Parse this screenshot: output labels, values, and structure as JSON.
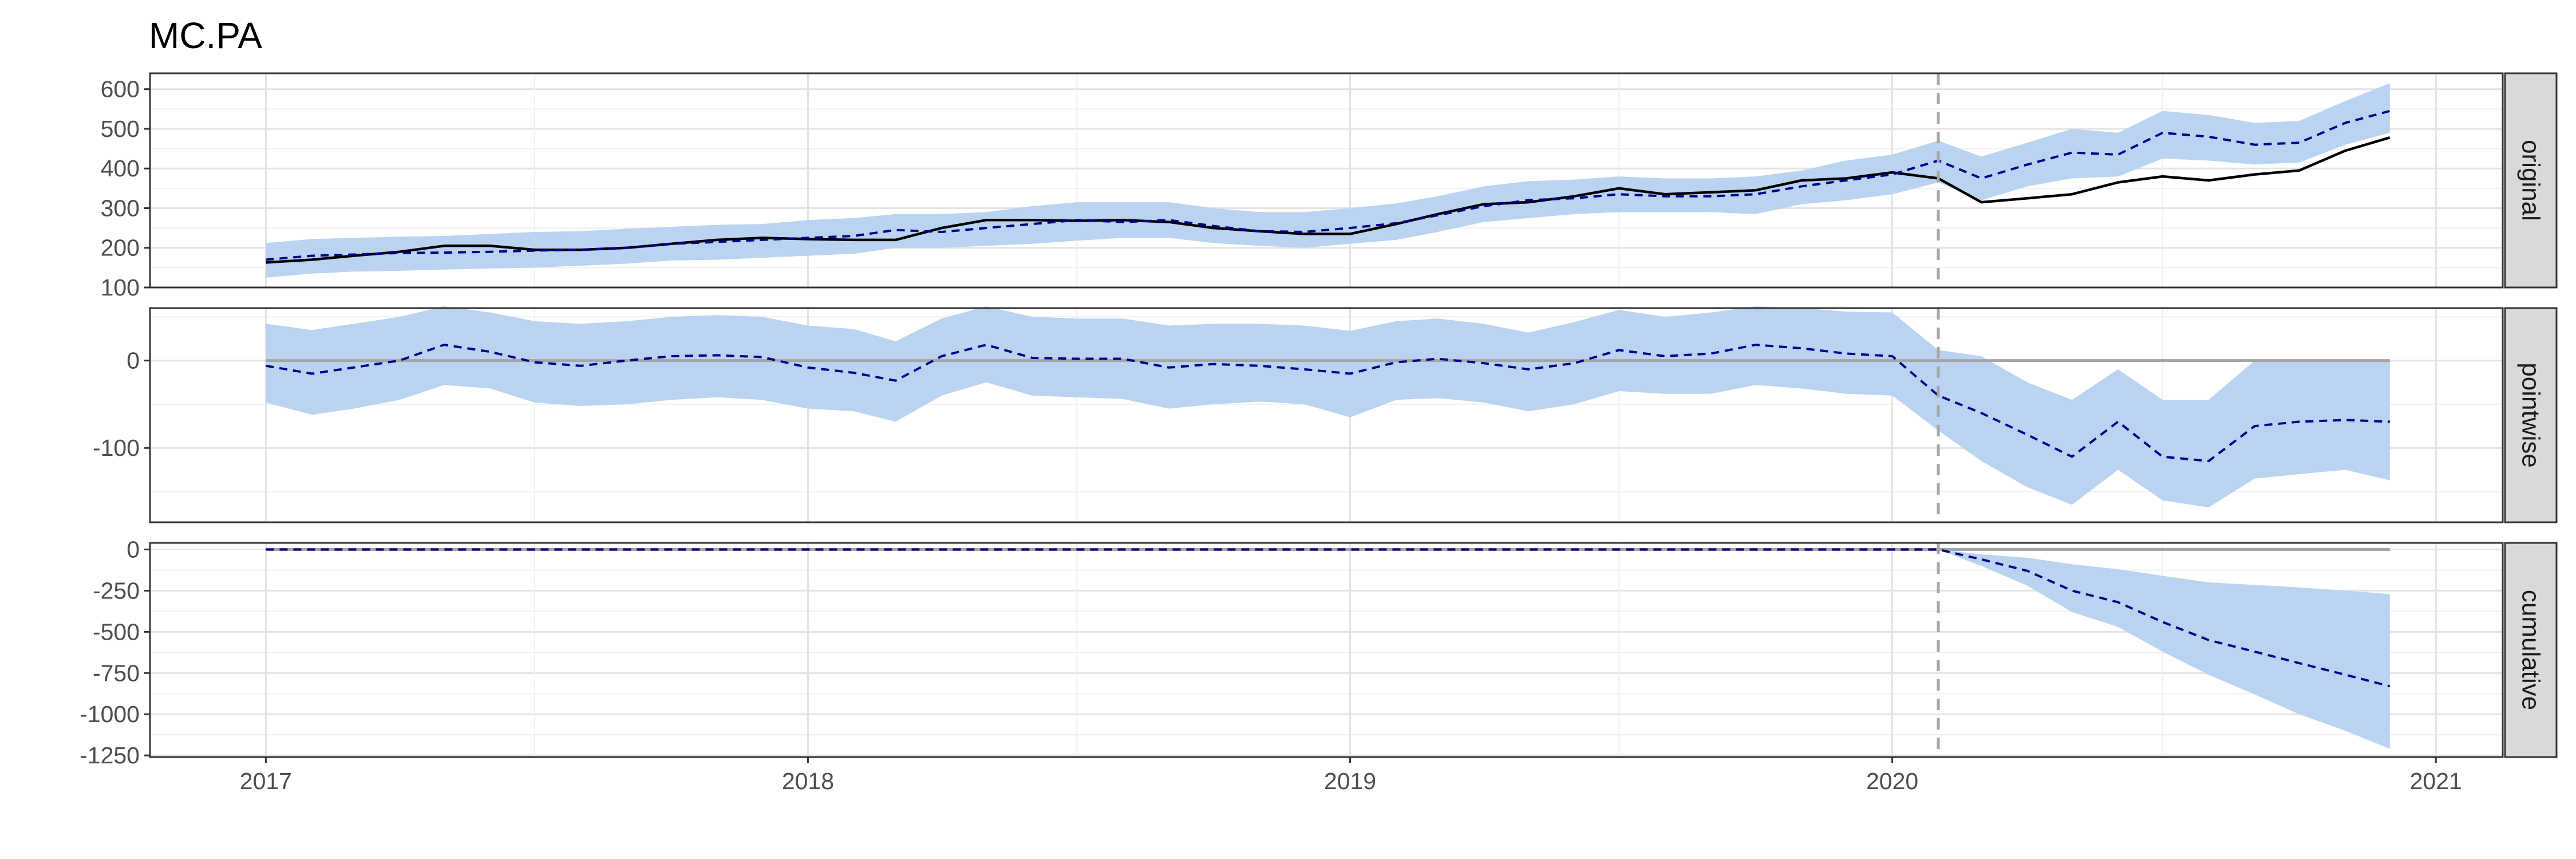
{
  "chart_data": {
    "type": "line",
    "title": "MC.PA",
    "x_axis": {
      "ticks": [
        "2017",
        "2018",
        "2019",
        "2020",
        "2021"
      ],
      "range": [
        "2016-10-15",
        "2021-02-15"
      ]
    },
    "intervention_date": "2020-02-01",
    "grid": true,
    "colors": {
      "band": "#b9d3f0",
      "predicted": "#00008b",
      "actual": "#000000",
      "zero_line": "#a6a6a6",
      "intervention": "#a6a6a6",
      "strip_fill": "#d9d9d9"
    },
    "x": [
      "2017-01-01",
      "2017-02-01",
      "2017-03-01",
      "2017-04-01",
      "2017-05-01",
      "2017-06-01",
      "2017-07-01",
      "2017-08-01",
      "2017-09-01",
      "2017-10-01",
      "2017-11-01",
      "2017-12-01",
      "2018-01-01",
      "2018-02-01",
      "2018-03-01",
      "2018-04-01",
      "2018-05-01",
      "2018-06-01",
      "2018-07-01",
      "2018-08-01",
      "2018-09-01",
      "2018-10-01",
      "2018-11-01",
      "2018-12-01",
      "2019-01-01",
      "2019-02-01",
      "2019-03-01",
      "2019-04-01",
      "2019-05-01",
      "2019-06-01",
      "2019-07-01",
      "2019-08-01",
      "2019-09-01",
      "2019-10-01",
      "2019-11-01",
      "2019-12-01",
      "2020-01-01",
      "2020-02-01",
      "2020-03-01",
      "2020-04-01",
      "2020-05-01",
      "2020-06-01",
      "2020-07-01",
      "2020-08-01",
      "2020-09-01",
      "2020-10-01",
      "2020-11-01",
      "2020-12-01"
    ],
    "panels": [
      {
        "label": "original",
        "ylim": [
          100,
          640
        ],
        "yticks": [
          100,
          200,
          300,
          400,
          500,
          600
        ],
        "zero_line": false,
        "series": [
          {
            "role": "actual",
            "values": [
              163,
              170,
              180,
              190,
              205,
              205,
              195,
              195,
              200,
              210,
              220,
              225,
              222,
              220,
              220,
              250,
              270,
              270,
              268,
              270,
              265,
              250,
              242,
              235,
              235,
              260,
              285,
              310,
              315,
              330,
              350,
              335,
              340,
              345,
              370,
              375,
              390,
              375,
              315,
              325,
              335,
              365,
              380,
              370,
              385,
              395,
              445,
              478
            ]
          },
          {
            "role": "predicted",
            "values": [
              170,
              180,
              183,
              187,
              188,
              190,
              193,
              195,
              200,
              210,
              215,
              220,
              225,
              230,
              245,
              240,
              250,
              260,
              270,
              265,
              270,
              255,
              242,
              240,
              250,
              262,
              282,
              305,
              320,
              325,
              335,
              330,
              330,
              335,
              355,
              370,
              385,
              420,
              375,
              410,
              440,
              435,
              490,
              480,
              460,
              465,
              515,
              545
            ]
          },
          {
            "role": "band_lower",
            "values": [
              125,
              135,
              140,
              142,
              145,
              148,
              150,
              155,
              160,
              168,
              170,
              175,
              180,
              185,
              200,
              200,
              205,
              210,
              218,
              225,
              225,
              212,
              205,
              200,
              210,
              220,
              240,
              265,
              275,
              285,
              290,
              290,
              290,
              285,
              310,
              320,
              335,
              365,
              320,
              355,
              375,
              380,
              425,
              420,
              410,
              415,
              460,
              490
            ]
          },
          {
            "role": "band_upper",
            "values": [
              212,
              222,
              225,
              228,
              230,
              235,
              240,
              242,
              248,
              253,
              258,
              260,
              270,
              275,
              285,
              285,
              290,
              305,
              315,
              315,
              315,
              300,
              290,
              290,
              300,
              312,
              330,
              355,
              368,
              372,
              380,
              375,
              375,
              380,
              395,
              420,
              435,
              470,
              430,
              465,
              500,
              490,
              545,
              535,
              515,
              520,
              570,
              615
            ]
          }
        ]
      },
      {
        "label": "pointwise",
        "ylim": [
          -185,
          60
        ],
        "yticks": [
          -100,
          0
        ],
        "zero_line": true,
        "series": [
          {
            "role": "predicted",
            "values": [
              -6,
              -15,
              -8,
              0,
              18,
              10,
              -2,
              -6,
              0,
              5,
              6,
              4,
              -8,
              -14,
              -23,
              5,
              18,
              3,
              2,
              2,
              -8,
              -4,
              -6,
              -10,
              -15,
              -2,
              2,
              -3,
              -10,
              -3,
              12,
              5,
              8,
              18,
              14,
              8,
              5,
              -40,
              -60,
              -85,
              -110,
              -70,
              -110,
              -115,
              -75,
              -70,
              -68,
              -70
            ]
          },
          {
            "role": "band_lower",
            "values": [
              -48,
              -62,
              -55,
              -45,
              -28,
              -32,
              -48,
              -52,
              -50,
              -45,
              -42,
              -45,
              -55,
              -58,
              -70,
              -40,
              -25,
              -40,
              -42,
              -44,
              -55,
              -50,
              -47,
              -50,
              -65,
              -45,
              -43,
              -48,
              -58,
              -50,
              -35,
              -38,
              -38,
              -28,
              -32,
              -38,
              -40,
              -80,
              -115,
              -145,
              -165,
              -125,
              -160,
              -168,
              -135,
              -130,
              -125,
              -137
            ]
          },
          {
            "role": "band_upper",
            "values": [
              42,
              35,
              42,
              50,
              62,
              55,
              45,
              42,
              45,
              50,
              52,
              50,
              40,
              36,
              22,
              48,
              62,
              50,
              48,
              48,
              40,
              42,
              42,
              40,
              34,
              45,
              48,
              42,
              32,
              44,
              58,
              50,
              55,
              62,
              60,
              56,
              55,
              12,
              5,
              -25,
              -45,
              -10,
              -45,
              -45,
              0,
              0,
              0,
              0
            ]
          }
        ]
      },
      {
        "label": "cumulative",
        "ylim": [
          -1260,
          40
        ],
        "yticks": [
          -1250,
          -1000,
          -750,
          -500,
          -250,
          0
        ],
        "zero_line": true,
        "series": [
          {
            "role": "predicted",
            "values": [
              0,
              0,
              0,
              0,
              0,
              0,
              0,
              0,
              0,
              0,
              0,
              0,
              0,
              0,
              0,
              0,
              0,
              0,
              0,
              0,
              0,
              0,
              0,
              0,
              0,
              0,
              0,
              0,
              0,
              0,
              0,
              0,
              0,
              0,
              0,
              0,
              0,
              0,
              -60,
              -130,
              -250,
              -320,
              -440,
              -550,
              -620,
              -690,
              -760,
              -830
            ]
          },
          {
            "role": "band_lower",
            "values": [
              0,
              0,
              0,
              0,
              0,
              0,
              0,
              0,
              0,
              0,
              0,
              0,
              0,
              0,
              0,
              0,
              0,
              0,
              0,
              0,
              0,
              0,
              0,
              0,
              0,
              0,
              0,
              0,
              0,
              0,
              0,
              0,
              0,
              0,
              0,
              0,
              0,
              0,
              -100,
              -220,
              -380,
              -470,
              -620,
              -760,
              -880,
              -1000,
              -1100,
              -1210
            ]
          },
          {
            "role": "band_upper",
            "values": [
              0,
              0,
              0,
              0,
              0,
              0,
              0,
              0,
              0,
              0,
              0,
              0,
              0,
              0,
              0,
              0,
              0,
              0,
              0,
              0,
              0,
              0,
              0,
              0,
              0,
              0,
              0,
              0,
              0,
              0,
              0,
              0,
              0,
              0,
              0,
              0,
              0,
              0,
              -30,
              -50,
              -90,
              -120,
              -160,
              -200,
              -215,
              -230,
              -250,
              -270
            ]
          }
        ]
      }
    ]
  }
}
